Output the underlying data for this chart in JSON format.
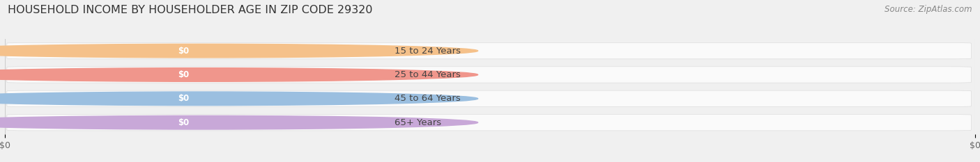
{
  "title": "HOUSEHOLD INCOME BY HOUSEHOLDER AGE IN ZIP CODE 29320",
  "source_text": "Source: ZipAtlas.com",
  "categories": [
    "15 to 24 Years",
    "25 to 44 Years",
    "45 to 64 Years",
    "65+ Years"
  ],
  "values": [
    0,
    0,
    0,
    0
  ],
  "bar_colors": [
    "#f5c18a",
    "#f0968c",
    "#9bbfe0",
    "#c8a8d8"
  ],
  "value_label": "$0",
  "xlabel_ticks": [
    "$0",
    "$0"
  ],
  "background_color": "#f0f0f0",
  "bar_bg_color": "#ffffff",
  "title_fontsize": 11.5,
  "source_fontsize": 8.5,
  "tick_fontsize": 9,
  "label_fontsize": 9.5,
  "value_fontsize": 8.5
}
